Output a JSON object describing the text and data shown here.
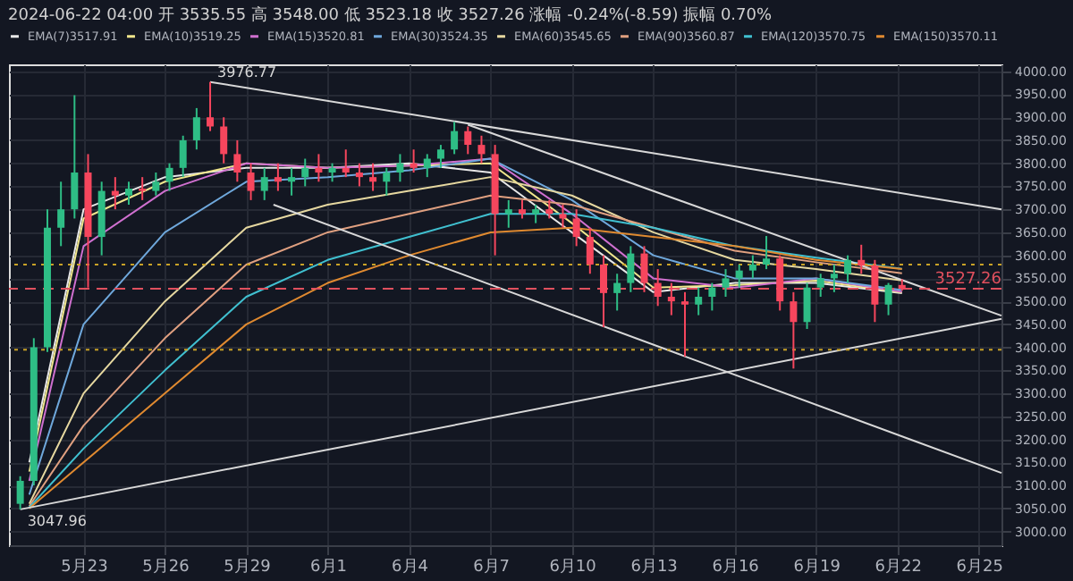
{
  "chart_data": {
    "type": "candlestick",
    "title": "2024-06-22 04:00 开 3535.55 高 3548.00 低 3523.18 收 3527.26 涨幅 -0.24%(-8.59) 振幅 0.70%",
    "x": [
      "2024-05-20T16:00",
      "2024-05-21T04:00",
      "2024-05-21T16:00",
      "2024-05-22T04:00",
      "2024-05-22T16:00",
      "2024-05-23T04:00",
      "2024-05-23T16:00",
      "2024-05-24T04:00",
      "2024-05-24T16:00",
      "2024-05-25T04:00",
      "2024-05-25T16:00",
      "2024-05-26T04:00",
      "2024-05-26T16:00",
      "2024-05-27T04:00",
      "2024-05-27T16:00",
      "2024-05-28T04:00",
      "2024-05-28T16:00",
      "2024-05-29T04:00",
      "2024-05-29T16:00",
      "2024-05-30T04:00",
      "2024-05-30T16:00",
      "2024-05-31T04:00",
      "2024-05-31T16:00",
      "2024-06-01T04:00",
      "2024-06-01T16:00",
      "2024-06-02T04:00",
      "2024-06-02T16:00",
      "2024-06-03T04:00",
      "2024-06-03T16:00",
      "2024-06-04T04:00",
      "2024-06-04T16:00",
      "2024-06-05T04:00",
      "2024-06-05T16:00",
      "2024-06-06T04:00",
      "2024-06-06T16:00",
      "2024-06-07T04:00",
      "2024-06-07T16:00",
      "2024-06-08T04:00",
      "2024-06-08T16:00",
      "2024-06-09T04:00",
      "2024-06-09T16:00",
      "2024-06-10T04:00",
      "2024-06-10T16:00",
      "2024-06-11T04:00",
      "2024-06-11T16:00",
      "2024-06-12T04:00",
      "2024-06-12T16:00",
      "2024-06-13T04:00",
      "2024-06-13T16:00",
      "2024-06-14T04:00",
      "2024-06-14T16:00",
      "2024-06-15T04:00",
      "2024-06-15T16:00",
      "2024-06-16T04:00",
      "2024-06-16T16:00",
      "2024-06-17T04:00",
      "2024-06-17T16:00",
      "2024-06-18T04:00",
      "2024-06-18T16:00",
      "2024-06-19T04:00",
      "2024-06-19T16:00",
      "2024-06-20T04:00",
      "2024-06-20T16:00",
      "2024-06-21T04:00",
      "2024-06-21T16:00",
      "2024-06-22T04:00"
    ],
    "ohlc": [
      [
        3060,
        3120,
        3047.96,
        3110
      ],
      [
        3110,
        3420,
        3100,
        3400
      ],
      [
        3400,
        3700,
        3390,
        3660
      ],
      [
        3660,
        3760,
        3620,
        3700
      ],
      [
        3700,
        3948,
        3680,
        3780
      ],
      [
        3780,
        3820,
        3530,
        3640
      ],
      [
        3640,
        3760,
        3600,
        3740
      ],
      [
        3740,
        3770,
        3700,
        3730
      ],
      [
        3730,
        3760,
        3710,
        3745
      ],
      [
        3745,
        3770,
        3720,
        3740
      ],
      [
        3740,
        3780,
        3730,
        3760
      ],
      [
        3760,
        3800,
        3740,
        3790
      ],
      [
        3790,
        3860,
        3770,
        3850
      ],
      [
        3850,
        3920,
        3830,
        3900
      ],
      [
        3900,
        3976.77,
        3870,
        3880
      ],
      [
        3880,
        3900,
        3800,
        3820
      ],
      [
        3820,
        3850,
        3760,
        3780
      ],
      [
        3780,
        3800,
        3720,
        3740
      ],
      [
        3740,
        3790,
        3720,
        3770
      ],
      [
        3770,
        3800,
        3740,
        3760
      ],
      [
        3760,
        3790,
        3730,
        3770
      ],
      [
        3770,
        3810,
        3750,
        3790
      ],
      [
        3790,
        3820,
        3760,
        3780
      ],
      [
        3780,
        3800,
        3760,
        3790
      ],
      [
        3790,
        3830,
        3770,
        3780
      ],
      [
        3780,
        3800,
        3750,
        3770
      ],
      [
        3770,
        3800,
        3740,
        3760
      ],
      [
        3760,
        3790,
        3730,
        3780
      ],
      [
        3780,
        3820,
        3760,
        3800
      ],
      [
        3800,
        3830,
        3780,
        3790
      ],
      [
        3790,
        3820,
        3770,
        3810
      ],
      [
        3810,
        3840,
        3790,
        3830
      ],
      [
        3830,
        3890,
        3820,
        3870
      ],
      [
        3870,
        3880,
        3820,
        3840
      ],
      [
        3840,
        3860,
        3800,
        3820
      ],
      [
        3820,
        3840,
        3600,
        3690
      ],
      [
        3690,
        3720,
        3660,
        3700
      ],
      [
        3700,
        3720,
        3680,
        3690
      ],
      [
        3690,
        3710,
        3670,
        3700
      ],
      [
        3700,
        3720,
        3680,
        3690
      ],
      [
        3690,
        3710,
        3660,
        3680
      ],
      [
        3680,
        3700,
        3620,
        3640
      ],
      [
        3640,
        3660,
        3560,
        3580
      ],
      [
        3580,
        3600,
        3444,
        3518
      ],
      [
        3518,
        3560,
        3480,
        3540
      ],
      [
        3540,
        3620,
        3520,
        3604
      ],
      [
        3604,
        3620,
        3520,
        3540
      ],
      [
        3540,
        3570,
        3490,
        3510
      ],
      [
        3510,
        3540,
        3470,
        3500
      ],
      [
        3500,
        3520,
        3380,
        3493
      ],
      [
        3493,
        3530,
        3470,
        3510
      ],
      [
        3510,
        3540,
        3480,
        3530
      ],
      [
        3530,
        3570,
        3510,
        3550
      ],
      [
        3550,
        3580,
        3530,
        3567
      ],
      [
        3567,
        3600,
        3550,
        3580
      ],
      [
        3580,
        3642,
        3570,
        3593
      ],
      [
        3593,
        3600,
        3480,
        3500
      ],
      [
        3500,
        3520,
        3354,
        3455
      ],
      [
        3455,
        3540,
        3440,
        3530
      ],
      [
        3530,
        3560,
        3510,
        3550
      ],
      [
        3550,
        3580,
        3520,
        3560
      ],
      [
        3560,
        3600,
        3540,
        3590
      ],
      [
        3590,
        3623,
        3560,
        3578
      ],
      [
        3578,
        3590,
        3455,
        3493
      ],
      [
        3493,
        3540,
        3470,
        3535.55
      ],
      [
        3535.55,
        3548.0,
        3523.18,
        3527.26
      ]
    ],
    "colors": [
      "#2ebd85",
      "#2ebd85",
      "#2ebd85",
      "#2ebd85",
      "#2ebd85",
      "#f6465d",
      "#2ebd85",
      "#f6465d",
      "#2ebd85",
      "#f6465d",
      "#2ebd85",
      "#2ebd85",
      "#2ebd85",
      "#2ebd85",
      "#f6465d",
      "#f6465d",
      "#f6465d",
      "#f6465d",
      "#2ebd85",
      "#f6465d",
      "#2ebd85",
      "#2ebd85",
      "#f6465d",
      "#2ebd85",
      "#f6465d",
      "#f6465d",
      "#f6465d",
      "#2ebd85",
      "#2ebd85",
      "#f6465d",
      "#2ebd85",
      "#2ebd85",
      "#2ebd85",
      "#f6465d",
      "#f6465d",
      "#f6465d",
      "#2ebd85",
      "#f6465d",
      "#2ebd85",
      "#f6465d",
      "#f6465d",
      "#f6465d",
      "#f6465d",
      "#f6465d",
      "#2ebd85",
      "#2ebd85",
      "#f6465d",
      "#f6465d",
      "#f6465d",
      "#f6465d",
      "#2ebd85",
      "#2ebd85",
      "#2ebd85",
      "#2ebd85",
      "#2ebd85",
      "#2ebd85",
      "#f6465d",
      "#f6465d",
      "#2ebd85",
      "#2ebd85",
      "#2ebd85",
      "#2ebd85",
      "#f6465d",
      "#f6465d",
      "#2ebd85",
      "#f6465d"
    ],
    "series": [
      {
        "type": "line",
        "name": "EMA(7)3517.91",
        "color": "#e8e8e8",
        "x": [
          "2024-05-21",
          "2024-05-23",
          "2024-05-26",
          "2024-05-29",
          "2024-06-01",
          "2024-06-04",
          "2024-06-07",
          "2024-06-10",
          "2024-06-13",
          "2024-06-16",
          "2024-06-19",
          "2024-06-22T04:00"
        ],
        "values": [
          3150,
          3700,
          3770,
          3790,
          3790,
          3800,
          3780,
          3650,
          3520,
          3540,
          3540,
          3517.91
        ]
      },
      {
        "type": "line",
        "name": "EMA(10)3519.25",
        "color": "#f0e68c",
        "x": [
          "2024-05-21",
          "2024-05-23",
          "2024-05-26",
          "2024-05-29",
          "2024-06-01",
          "2024-06-04",
          "2024-06-07",
          "2024-06-10",
          "2024-06-13",
          "2024-06-16",
          "2024-06-19",
          "2024-06-22T04:00"
        ],
        "values": [
          3130,
          3680,
          3760,
          3800,
          3790,
          3795,
          3800,
          3670,
          3530,
          3535,
          3545,
          3519.25
        ]
      },
      {
        "type": "line",
        "name": "EMA(15)3520.81",
        "color": "#d070d0",
        "x": [
          "2024-05-21",
          "2024-05-23",
          "2024-05-26",
          "2024-05-29",
          "2024-06-01",
          "2024-06-04",
          "2024-06-07",
          "2024-06-10",
          "2024-06-13",
          "2024-06-16",
          "2024-06-19",
          "2024-06-22T04:00"
        ],
        "values": [
          3110,
          3620,
          3740,
          3800,
          3790,
          3795,
          3810,
          3690,
          3550,
          3530,
          3550,
          3520.81
        ]
      },
      {
        "type": "line",
        "name": "EMA(30)3524.35",
        "color": "#6fa8dc",
        "x": [
          "2024-05-21",
          "2024-05-23",
          "2024-05-26",
          "2024-05-29",
          "2024-06-01",
          "2024-06-04",
          "2024-06-07",
          "2024-06-10",
          "2024-06-13",
          "2024-06-16",
          "2024-06-19",
          "2024-06-22T04:00"
        ],
        "values": [
          3080,
          3450,
          3650,
          3760,
          3770,
          3785,
          3810,
          3720,
          3600,
          3550,
          3550,
          3524.35
        ]
      },
      {
        "type": "line",
        "name": "EMA(60)3545.65",
        "color": "#e6d8a0",
        "x": [
          "2024-05-21",
          "2024-05-23",
          "2024-05-26",
          "2024-05-29",
          "2024-06-01",
          "2024-06-04",
          "2024-06-07",
          "2024-06-10",
          "2024-06-13",
          "2024-06-16",
          "2024-06-19",
          "2024-06-22T04:00"
        ],
        "values": [
          3060,
          3300,
          3500,
          3660,
          3710,
          3740,
          3770,
          3730,
          3650,
          3590,
          3570,
          3545.65
        ]
      },
      {
        "type": "line",
        "name": "EMA(90)3560.87",
        "color": "#e0a080",
        "x": [
          "2024-05-21",
          "2024-05-23",
          "2024-05-26",
          "2024-05-29",
          "2024-06-01",
          "2024-06-04",
          "2024-06-07",
          "2024-06-10",
          "2024-06-13",
          "2024-06-16",
          "2024-06-19",
          "2024-06-22T04:00"
        ],
        "values": [
          3055,
          3230,
          3420,
          3580,
          3650,
          3690,
          3730,
          3710,
          3660,
          3610,
          3585,
          3560.87
        ]
      },
      {
        "type": "line",
        "name": "EMA(120)3570.75",
        "color": "#40c0d0",
        "x": [
          "2024-05-21",
          "2024-05-23",
          "2024-05-26",
          "2024-05-29",
          "2024-06-01",
          "2024-06-04",
          "2024-06-07",
          "2024-06-10",
          "2024-06-13",
          "2024-06-16",
          "2024-06-19",
          "2024-06-22T04:00"
        ],
        "values": [
          3052,
          3180,
          3350,
          3510,
          3590,
          3640,
          3690,
          3690,
          3660,
          3620,
          3595,
          3570.75
        ]
      },
      {
        "type": "line",
        "name": "EMA(150)3570.11",
        "color": "#e08a30",
        "x": [
          "2024-05-21",
          "2024-05-23",
          "2024-05-26",
          "2024-05-29",
          "2024-06-01",
          "2024-06-04",
          "2024-06-07",
          "2024-06-10",
          "2024-06-13",
          "2024-06-16",
          "2024-06-19",
          "2024-06-22T04:00"
        ],
        "values": [
          3050,
          3150,
          3300,
          3450,
          3540,
          3600,
          3650,
          3660,
          3640,
          3620,
          3590,
          3570.11
        ]
      },
      {
        "type": "line",
        "color": "#d8d8d8",
        "x": [
          "2024-05-27T16:00",
          "2024-06-25T20:00"
        ],
        "values": [
          3976.77,
          3700
        ]
      },
      {
        "type": "line",
        "color": "#d8d8d8",
        "x": [
          "2024-06-06T04:00",
          "2024-06-25T20:00"
        ],
        "values": [
          3884,
          3469
        ]
      },
      {
        "type": "line",
        "color": "#d8d8d8",
        "x": [
          "2024-05-30T00:00",
          "2024-06-25T20:00"
        ],
        "values": [
          3710,
          3127
        ]
      },
      {
        "type": "line",
        "color": "#d8d8d8",
        "x": [
          "2024-05-20T16:00",
          "2024-06-25T20:00"
        ],
        "values": [
          3047.96,
          3462
        ]
      }
    ],
    "ref_lines": [
      {
        "axis": "y",
        "value": 3580,
        "color": "#c9a227",
        "line_style": "dotted"
      },
      {
        "axis": "y",
        "value": 3395,
        "color": "#c9a227",
        "line_style": "dotted"
      },
      {
        "axis": "y",
        "value": 3527.26,
        "label": "3527.26",
        "color": "#e0505e",
        "line_style": "dashed"
      }
    ],
    "annotations": [
      {
        "text": "3976.77",
        "x": "2024-05-27T16:00",
        "y": 3976.77
      },
      {
        "text": "3047.96",
        "x": "2024-05-20T16:00",
        "y": 3047.96
      }
    ],
    "xlim": [
      "2024-05-20T06:00",
      "2024-06-25T20:00"
    ],
    "xticks": [
      {
        "value": "2024-05-23",
        "label": "5月23"
      },
      {
        "value": "2024-05-26",
        "label": "5月26"
      },
      {
        "value": "2024-05-29",
        "label": "5月29"
      },
      {
        "value": "2024-06-01",
        "label": "6月1"
      },
      {
        "value": "2024-06-04",
        "label": "6月4"
      },
      {
        "value": "2024-06-07",
        "label": "6月7"
      },
      {
        "value": "2024-06-10",
        "label": "6月10"
      },
      {
        "value": "2024-06-13",
        "label": "6月13"
      },
      {
        "value": "2024-06-16",
        "label": "6月16"
      },
      {
        "value": "2024-06-19",
        "label": "6月19"
      },
      {
        "value": "2024-06-22",
        "label": "6月22"
      },
      {
        "value": "2024-06-25",
        "label": "6月25"
      }
    ],
    "ylim": [
      2970,
      4015
    ],
    "yticks": [
      {
        "value": 3000,
        "label": "3000.00"
      },
      {
        "value": 3050,
        "label": "3050.00"
      },
      {
        "value": 3100,
        "label": "3100.00"
      },
      {
        "value": 3150,
        "label": "3150.00"
      },
      {
        "value": 3200,
        "label": "3200.00"
      },
      {
        "value": 3250,
        "label": "3250.00"
      },
      {
        "value": 3300,
        "label": "3300.00"
      },
      {
        "value": 3350,
        "label": "3350.00"
      },
      {
        "value": 3400,
        "label": "3400.00"
      },
      {
        "value": 3450,
        "label": "3450.00"
      },
      {
        "value": 3500,
        "label": "3500.00"
      },
      {
        "value": 3550,
        "label": "3550.00"
      },
      {
        "value": 3600,
        "label": "3600.00"
      },
      {
        "value": 3650,
        "label": "3650.00"
      },
      {
        "value": 3700,
        "label": "3700.00"
      },
      {
        "value": 3750,
        "label": "3750.00"
      },
      {
        "value": 3800,
        "label": "3800.00"
      },
      {
        "value": 3850,
        "label": "3850.00"
      },
      {
        "value": 3900,
        "label": "3900.00"
      },
      {
        "value": 3950,
        "label": "3950.00"
      },
      {
        "value": 4000,
        "label": "4000.00"
      }
    ],
    "grid": true,
    "legend": "top left"
  }
}
